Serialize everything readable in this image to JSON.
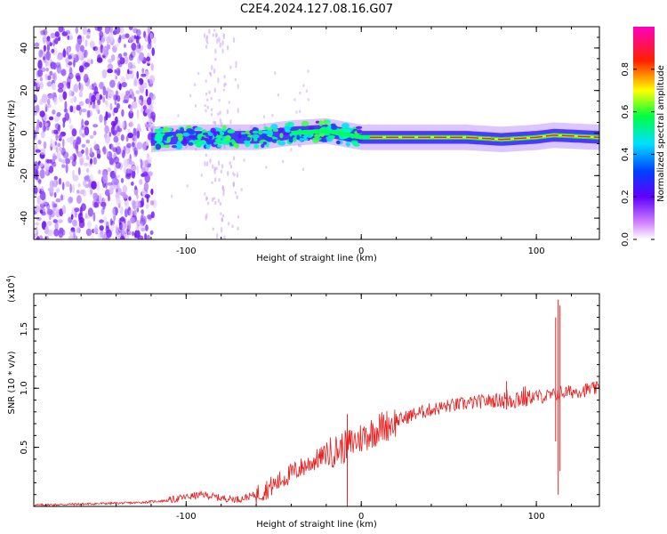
{
  "title": "C2E4.2024.127.08.16.G07",
  "chart_data": [
    {
      "type": "heatmap",
      "xlabel": "Height of straight line (km)",
      "ylabel": "Frequency (Hz)",
      "xlim": [
        -187,
        136
      ],
      "ylim": [
        -50,
        50
      ],
      "xticks": [
        -100,
        0,
        100
      ],
      "xtick_labels": [
        "-100",
        "0",
        "100"
      ],
      "yticks": [
        -40,
        -20,
        0,
        20,
        40
      ],
      "ytick_labels": [
        "-40",
        "-20",
        "0",
        "20",
        "40"
      ],
      "colorbar": {
        "label": "Normalized spectral amplitude",
        "range": [
          0,
          1
        ],
        "ticks": [
          0.0,
          0.2,
          0.4,
          0.6,
          0.8
        ],
        "tick_labels": [
          "0.0",
          "0.2",
          "0.4",
          "0.6",
          "0.8"
        ],
        "colors": [
          "#ffffff",
          "#b000ff",
          "#0000ff",
          "#00ffff",
          "#00ff00",
          "#ffff00",
          "#ff0000",
          "#ff00aa"
        ]
      },
      "ridge": {
        "description_free_values": true,
        "x": [
          -120,
          -100,
          -80,
          -60,
          -40,
          -20,
          0,
          20,
          40,
          60,
          80,
          100,
          110,
          136
        ],
        "frequency": [
          -3,
          -2,
          -2,
          -2,
          0,
          1,
          -2,
          -2,
          -2,
          -2,
          -3,
          -2,
          -1,
          -2
        ],
        "amplitude": [
          0.4,
          0.45,
          0.45,
          0.5,
          0.55,
          0.7,
          0.8,
          0.95,
          0.85,
          0.8,
          0.9,
          0.95,
          0.8,
          0.85
        ]
      },
      "noise_region_x": [
        -187,
        -118
      ]
    },
    {
      "type": "line",
      "xlabel": "Height of straight line (km)",
      "ylabel": "SNR (10 * v/v)",
      "scale_label": "(x10",
      "scale_exp": "4",
      "scale_close": ")",
      "xlim": [
        -187,
        136
      ],
      "ylim": [
        0,
        1.8
      ],
      "xticks": [
        -100,
        0,
        100
      ],
      "xtick_labels": [
        "-100",
        "0",
        "100"
      ],
      "yticks": [
        0.5,
        1.0,
        1.5
      ],
      "ytick_labels": [
        "0.5",
        "1.0",
        "1.5"
      ],
      "color": "#e82020",
      "series": [
        {
          "x": [
            -187,
            -160,
            -130,
            -110,
            -100,
            -90,
            -80,
            -70,
            -60,
            -50,
            -40,
            -30,
            -20,
            -10,
            0,
            10,
            20,
            30,
            40,
            50,
            60,
            70,
            80,
            90,
            100,
            105,
            110,
            114,
            120,
            130,
            136
          ],
          "values": [
            0.01,
            0.02,
            0.03,
            0.05,
            0.08,
            0.1,
            0.07,
            0.06,
            0.1,
            0.18,
            0.28,
            0.36,
            0.44,
            0.5,
            0.58,
            0.66,
            0.72,
            0.78,
            0.82,
            0.85,
            0.87,
            0.89,
            0.9,
            0.92,
            0.93,
            0.93,
            0.94,
            0.96,
            0.97,
            0.99,
            1.0
          ]
        }
      ],
      "spikes": [
        {
          "x": -8,
          "value": 0.78,
          "low": 0.0
        },
        {
          "x": 83,
          "value": 1.06,
          "low": 0.82
        },
        {
          "x": 111,
          "value": 1.6,
          "low": 0.55
        },
        {
          "x": 112.5,
          "value": 1.75,
          "low": 0.1
        },
        {
          "x": 113.5,
          "value": 1.7,
          "low": 0.3
        }
      ]
    }
  ]
}
